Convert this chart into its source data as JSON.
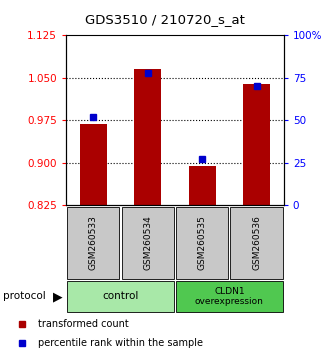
{
  "title": "GDS3510 / 210720_s_at",
  "samples": [
    "GSM260533",
    "GSM260534",
    "GSM260535",
    "GSM260536"
  ],
  "red_values": [
    0.968,
    1.065,
    0.895,
    1.04
  ],
  "blue_values": [
    52,
    78,
    27,
    70
  ],
  "ylim_left": [
    0.825,
    1.125
  ],
  "ylim_right": [
    0,
    100
  ],
  "yticks_left": [
    0.825,
    0.9,
    0.975,
    1.05,
    1.125
  ],
  "yticks_right": [
    0,
    25,
    50,
    75,
    100
  ],
  "bar_color": "#AA0000",
  "marker_color": "#0000CC",
  "bg_color": "#C8C8C8",
  "ctrl_color": "#A8E8A8",
  "cldn_color": "#50C850",
  "legend_red": "transformed count",
  "legend_blue": "percentile rank within the sample"
}
